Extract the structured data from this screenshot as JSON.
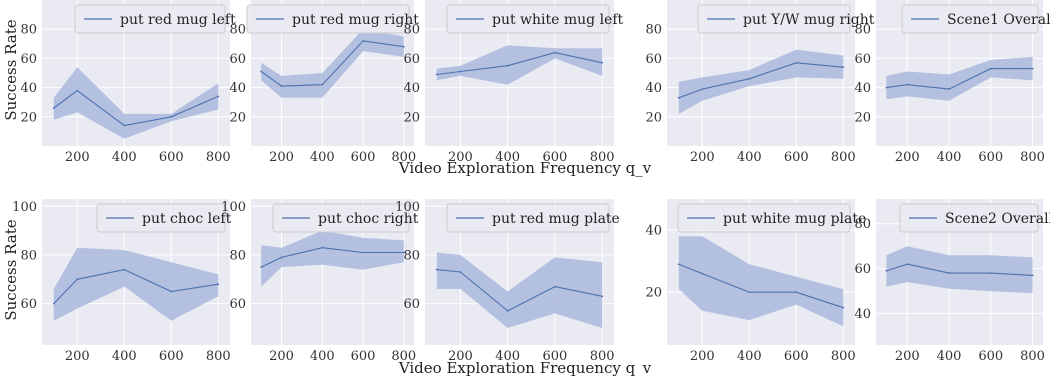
{
  "figure": {
    "xlabel": "Video Exploration Frequency q_v",
    "ylabel": "Success Rate"
  },
  "colors": {
    "line": "#4c72b0",
    "band": "#aab9dc",
    "panel_bg": "#eaeaf2",
    "grid": "#ffffff"
  },
  "chart_data": [
    {
      "type": "line",
      "legend": "put red mug left",
      "legend_position": "top",
      "x": [
        100,
        200,
        400,
        600,
        800
      ],
      "y": [
        26,
        38,
        14,
        20,
        34
      ],
      "lower": [
        18,
        23,
        5,
        17,
        25
      ],
      "upper": [
        33,
        54,
        22,
        22,
        43
      ],
      "yticks": [
        20,
        40,
        60,
        80
      ],
      "xticks": [
        200,
        400,
        600,
        800
      ],
      "xlim": [
        50,
        850
      ],
      "ylim": [
        0,
        100
      ],
      "grid": true
    },
    {
      "type": "line",
      "legend": "put red mug right",
      "legend_position": "top",
      "x": [
        100,
        200,
        400,
        600,
        800
      ],
      "y": [
        51,
        41,
        42,
        72,
        68
      ],
      "lower": [
        45,
        33,
        33,
        65,
        61
      ],
      "upper": [
        57,
        48,
        50,
        80,
        75
      ],
      "yticks": [
        20,
        40,
        60,
        80
      ],
      "xticks": [
        200,
        400,
        600,
        800
      ],
      "xlim": [
        50,
        850
      ],
      "ylim": [
        0,
        100
      ],
      "grid": true
    },
    {
      "type": "line",
      "legend": "put white mug left",
      "legend_position": "top",
      "x": [
        100,
        200,
        400,
        600,
        800
      ],
      "y": [
        49,
        51,
        55,
        64,
        57
      ],
      "lower": [
        45,
        48,
        42,
        60,
        48
      ],
      "upper": [
        53,
        55,
        69,
        67,
        67
      ],
      "yticks": [
        20,
        40,
        60,
        80
      ],
      "xticks": [
        200,
        400,
        600,
        800
      ],
      "xlim": [
        50,
        850
      ],
      "ylim": [
        0,
        100
      ],
      "grid": true
    },
    {
      "type": "line",
      "legend": "put Y/W mug right",
      "legend_position": "top",
      "x": [
        100,
        200,
        400,
        600,
        800
      ],
      "y": [
        33,
        39,
        46,
        57,
        54
      ],
      "lower": [
        22,
        31,
        41,
        47,
        46
      ],
      "upper": [
        44,
        47,
        52,
        66,
        62
      ],
      "yticks": [
        20,
        40,
        60,
        80
      ],
      "xticks": [
        200,
        400,
        600,
        800
      ],
      "xlim": [
        50,
        850
      ],
      "ylim": [
        0,
        100
      ],
      "grid": true
    },
    {
      "type": "line",
      "legend": "Scene1 Overall",
      "legend_position": "top",
      "x": [
        100,
        200,
        400,
        600,
        800
      ],
      "y": [
        40,
        42,
        39,
        53,
        53
      ],
      "lower": [
        32,
        34,
        31,
        47,
        45
      ],
      "upper": [
        48,
        51,
        49,
        59,
        61
      ],
      "yticks": [
        20,
        40,
        60,
        80
      ],
      "xticks": [
        200,
        400,
        600,
        800
      ],
      "xlim": [
        50,
        850
      ],
      "ylim": [
        0,
        100
      ],
      "grid": true
    },
    {
      "type": "line",
      "legend": "put choc left",
      "legend_position": "top",
      "x": [
        100,
        200,
        400,
        600,
        800
      ],
      "y": [
        60,
        70,
        74,
        65,
        68
      ],
      "lower": [
        53,
        58,
        67,
        53,
        63
      ],
      "upper": [
        66,
        83,
        82,
        77,
        72
      ],
      "yticks": [
        60,
        80,
        100
      ],
      "xticks": [
        200,
        400,
        600,
        800
      ],
      "xlim": [
        50,
        850
      ],
      "ylim": [
        43,
        103
      ],
      "grid": true
    },
    {
      "type": "line",
      "legend": "put choc right",
      "legend_position": "top",
      "x": [
        100,
        200,
        400,
        600,
        800
      ],
      "y": [
        75,
        79,
        83,
        81,
        81
      ],
      "lower": [
        67,
        75,
        76,
        74,
        77
      ],
      "upper": [
        84,
        83,
        90,
        87,
        86
      ],
      "yticks": [
        60,
        80,
        100
      ],
      "xticks": [
        200,
        400,
        600,
        800
      ],
      "xlim": [
        50,
        850
      ],
      "ylim": [
        43,
        103
      ],
      "grid": true
    },
    {
      "type": "line",
      "legend": "put red mug plate",
      "legend_position": "top",
      "x": [
        100,
        200,
        400,
        600,
        800
      ],
      "y": [
        74,
        73,
        57,
        67,
        63
      ],
      "lower": [
        66,
        66,
        50,
        56,
        50
      ],
      "upper": [
        81,
        80,
        65,
        79,
        77
      ],
      "yticks": [
        60,
        80,
        100
      ],
      "xticks": [
        200,
        400,
        600,
        800
      ],
      "xlim": [
        50,
        850
      ],
      "ylim": [
        43,
        103
      ],
      "grid": true
    },
    {
      "type": "line",
      "legend": "put white mug plate",
      "legend_position": "top",
      "x": [
        100,
        200,
        400,
        600,
        800
      ],
      "y": [
        29,
        26,
        20,
        20,
        15
      ],
      "lower": [
        21,
        14,
        11,
        16,
        9
      ],
      "upper": [
        38,
        38,
        29,
        25,
        21
      ],
      "yticks": [
        20,
        40
      ],
      "xticks": [
        200,
        400,
        600,
        800
      ],
      "xlim": [
        50,
        850
      ],
      "ylim": [
        3,
        50
      ],
      "grid": true
    },
    {
      "type": "line",
      "legend": "Scene2 Overall",
      "legend_position": "top",
      "x": [
        100,
        200,
        400,
        600,
        800
      ],
      "y": [
        59,
        62,
        58,
        58,
        57
      ],
      "lower": [
        52,
        54,
        51,
        50,
        49
      ],
      "upper": [
        66,
        70,
        66,
        66,
        65
      ],
      "yticks": [
        40,
        60,
        80
      ],
      "xticks": [
        200,
        400,
        600,
        800
      ],
      "xlim": [
        50,
        850
      ],
      "ylim": [
        26,
        91
      ],
      "grid": true
    }
  ]
}
